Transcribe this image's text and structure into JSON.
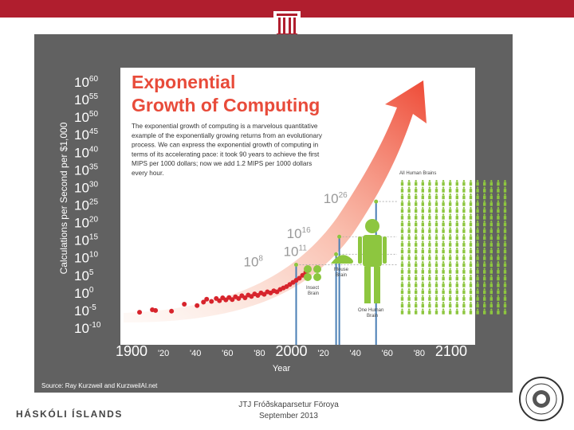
{
  "colors": {
    "topbar": "#b01e2e",
    "slide_bg": "#616161",
    "title": "#e84b3a",
    "points": "#d7242c",
    "arrow": "#f26a4f",
    "human": "#8dc63f",
    "guide": "#4a7fb5"
  },
  "footer": {
    "institution": "HÁSKÓLI ÍSLANDS",
    "line1": "JTJ Fróðskaparsetur Föroya",
    "line2": "September 2013"
  },
  "chart_data": {
    "type": "scatter",
    "title_line1": "Exponential",
    "title_line2": "Growth of Computing",
    "description": [
      "The exponential growth of computing is a marvelous quantitative",
      "example of the exponentially growing returns from an evolutionary",
      "process. We can express the exponential growth of computing in",
      "terms of its accelerating pace: it took 90 years to achieve the first",
      "MIPS per 1000 dollars; now we add 1.2 MIPS per 1000 dollars",
      "every hour."
    ],
    "ylabel": "Calculations per Second per $1,000",
    "xlabel": "Year",
    "source": "Source: Ray Kurzweil and KurzweilAI.net",
    "ylim": [
      -10,
      60
    ],
    "xlim": [
      1890,
      2110
    ],
    "y_ticks": [
      {
        "base": "10",
        "exp": "60",
        "v": 60
      },
      {
        "base": "10",
        "exp": "55",
        "v": 55
      },
      {
        "base": "10",
        "exp": "50",
        "v": 50
      },
      {
        "base": "10",
        "exp": "45",
        "v": 45
      },
      {
        "base": "10",
        "exp": "40",
        "v": 40
      },
      {
        "base": "10",
        "exp": "35",
        "v": 35
      },
      {
        "base": "10",
        "exp": "30",
        "v": 30
      },
      {
        "base": "10",
        "exp": "25",
        "v": 25
      },
      {
        "base": "10",
        "exp": "20",
        "v": 20
      },
      {
        "base": "10",
        "exp": "15",
        "v": 15
      },
      {
        "base": "10",
        "exp": "10",
        "v": 10
      },
      {
        "base": "10",
        "exp": "5",
        "v": 5
      },
      {
        "base": "10",
        "exp": "0",
        "v": 0
      },
      {
        "base": "10",
        "exp": "-5",
        "v": -5
      },
      {
        "base": "10",
        "exp": "-10",
        "v": -10
      }
    ],
    "x_ticks": [
      {
        "label": "1900",
        "v": 1900,
        "big": true
      },
      {
        "label": "'20",
        "v": 1920
      },
      {
        "label": "'40",
        "v": 1940
      },
      {
        "label": "'60",
        "v": 1960
      },
      {
        "label": "'80",
        "v": 1980
      },
      {
        "label": "2000",
        "v": 2000,
        "big": true
      },
      {
        "label": "'20",
        "v": 2020
      },
      {
        "label": "'40",
        "v": 2040
      },
      {
        "label": "'60",
        "v": 2060
      },
      {
        "label": "'80",
        "v": 2080
      },
      {
        "label": "2100",
        "v": 2100,
        "big": true
      }
    ],
    "points": [
      [
        1900,
        -5.5
      ],
      [
        1908,
        -4.8
      ],
      [
        1910,
        -5
      ],
      [
        1920,
        -5.2
      ],
      [
        1928,
        -3.2
      ],
      [
        1936,
        -3.6
      ],
      [
        1940,
        -2.6
      ],
      [
        1942,
        -1.8
      ],
      [
        1945,
        -2.4
      ],
      [
        1948,
        -1.6
      ],
      [
        1950,
        -2.2
      ],
      [
        1952,
        -1.4
      ],
      [
        1954,
        -2
      ],
      [
        1956,
        -1.3
      ],
      [
        1958,
        -1.9
      ],
      [
        1960,
        -1.1
      ],
      [
        1962,
        -1.6
      ],
      [
        1964,
        -0.8
      ],
      [
        1966,
        -1.4
      ],
      [
        1968,
        -0.6
      ],
      [
        1970,
        -1
      ],
      [
        1972,
        -0.3
      ],
      [
        1974,
        -0.7
      ],
      [
        1976,
        0
      ],
      [
        1978,
        -0.4
      ],
      [
        1980,
        0.3
      ],
      [
        1982,
        0
      ],
      [
        1984,
        0.6
      ],
      [
        1986,
        0.3
      ],
      [
        1988,
        1
      ],
      [
        1990,
        1.4
      ],
      [
        1992,
        1.8
      ],
      [
        1994,
        2.4
      ],
      [
        1996,
        3
      ],
      [
        1998,
        3.6
      ],
      [
        2000,
        4.2
      ],
      [
        2002,
        5
      ],
      [
        2004,
        5.8
      ]
    ],
    "markers": [
      {
        "label_base": "10",
        "label_exp": "8",
        "y": 8,
        "x": 1998
      },
      {
        "label_base": "10",
        "label_exp": "11",
        "y": 11,
        "x": 2023
      },
      {
        "label_base": "10",
        "label_exp": "16",
        "y": 16,
        "x": 2025
      },
      {
        "label_base": "10",
        "label_exp": "26",
        "y": 26,
        "x": 2048
      }
    ],
    "annotations": {
      "insect_line1": "Insect",
      "insect_line2": "Brain",
      "mouse_line1": "Mouse",
      "mouse_line2": "Brain",
      "human_line1": "One Human",
      "human_line2": "Brain",
      "all_humans": "All Human Brains"
    },
    "grid": false
  }
}
